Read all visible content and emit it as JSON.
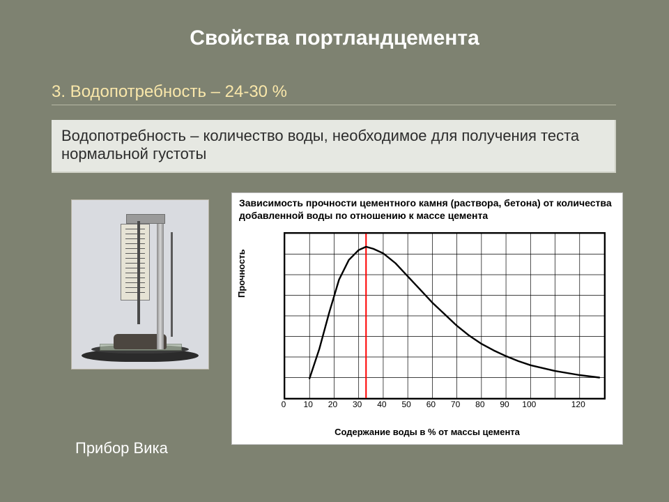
{
  "slide": {
    "title": "Свойства портландцемента",
    "title_fontsize": 30,
    "section_heading": "3. Водопотребность – 24-30 %",
    "section_fontsize": 24,
    "definition": "Водопотребность – количество воды, необходимое для получения теста нормальной густоты",
    "definition_fontsize": 22,
    "caption": "Прибор Вика",
    "caption_fontsize": 22,
    "background_color": "#7e8271",
    "title_color": "#ffffff",
    "heading_color": "#f9e7aa",
    "def_box_bg": "#e6e8e2",
    "caption_color": "#ffffff"
  },
  "chart": {
    "type": "line",
    "title": "Зависимость прочности цементного камня (раствора, бетона) от количества добавленной воды по отношению к массе цемента",
    "title_fontsize": 14,
    "ylabel": "Прочность",
    "xlabel": "Содержание воды в % от массы цемента",
    "label_fontsize": 13,
    "xlim": [
      0,
      130
    ],
    "ylim": [
      0,
      100
    ],
    "xtick_step": 10,
    "xticks": [
      0,
      10,
      20,
      30,
      40,
      50,
      60,
      70,
      80,
      90,
      100,
      "",
      120
    ],
    "ytick_count": 8,
    "grid_color": "#000000",
    "grid_width": 1,
    "background_color": "#ffffff",
    "curve": {
      "points": [
        [
          10,
          12
        ],
        [
          14,
          30
        ],
        [
          18,
          52
        ],
        [
          22,
          72
        ],
        [
          26,
          84
        ],
        [
          30,
          90
        ],
        [
          33,
          92
        ],
        [
          36,
          90.7
        ],
        [
          40,
          88
        ],
        [
          45,
          82
        ],
        [
          50,
          74
        ],
        [
          55,
          66
        ],
        [
          60,
          58
        ],
        [
          65,
          51
        ],
        [
          70,
          44
        ],
        [
          75,
          38
        ],
        [
          80,
          33
        ],
        [
          85,
          29
        ],
        [
          90,
          25.5
        ],
        [
          95,
          22.5
        ],
        [
          100,
          20
        ],
        [
          110,
          16.5
        ],
        [
          120,
          14
        ],
        [
          128,
          12.5
        ]
      ],
      "color": "#000000",
      "width": 2.4
    },
    "marker_line": {
      "x": 33,
      "color": "#ff0000",
      "width": 2
    }
  }
}
